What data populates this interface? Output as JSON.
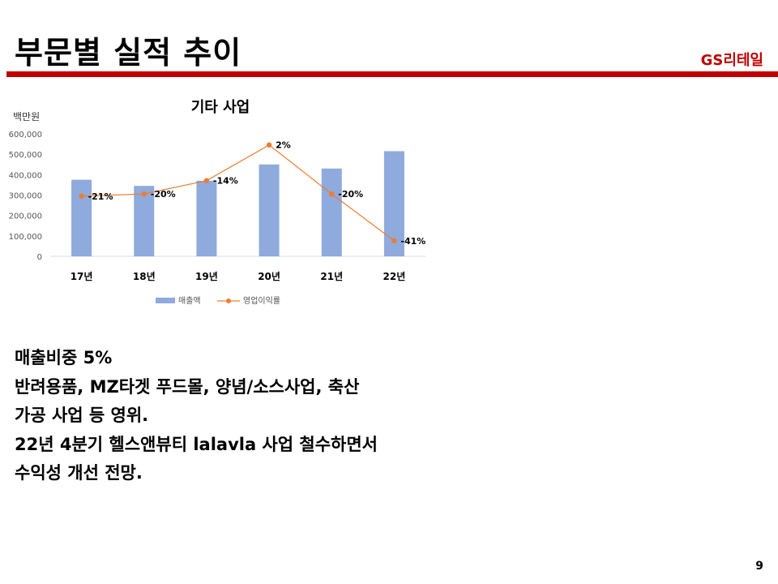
{
  "slide": {
    "title": "부문별 실적 추이",
    "brand": "GS리테일",
    "page_number": "9"
  },
  "colors": {
    "accent": "#c00000",
    "bar": "#8faadc",
    "line": "#ed7d31"
  },
  "chart_data": {
    "type": "bar",
    "title": "기타 사업",
    "unit_label": "백만원",
    "categories": [
      "17년",
      "18년",
      "19년",
      "20년",
      "21년",
      "22년"
    ],
    "ylim": [
      0,
      600000
    ],
    "yticks": [
      "0",
      "100,000",
      "200,000",
      "300,000",
      "400,000",
      "500,000",
      "600,000"
    ],
    "grid": false,
    "legend_position": "bottom",
    "series": [
      {
        "name": "매출액",
        "type": "bar",
        "values": [
          375000,
          345000,
          370000,
          450000,
          430000,
          515000
        ]
      },
      {
        "name": "영업이익률",
        "type": "line",
        "values": [
          -21,
          -20,
          -14,
          2,
          -20,
          -41
        ],
        "labels": [
          "-21%",
          "-20%",
          "-14%",
          "2%",
          "-20%",
          "-41%"
        ],
        "secondary_ylim": [
          -48,
          7
        ]
      }
    ]
  },
  "body": {
    "lines": [
      "매출비중 5%",
      "반려용품, MZ타겟 푸드몰, 양념/소스사업, 축산",
      "가공 사업 등 영위.",
      "22년 4분기 헬스앤뷰티 lalavla 사업 철수하면서",
      "수익성 개선 전망."
    ]
  }
}
